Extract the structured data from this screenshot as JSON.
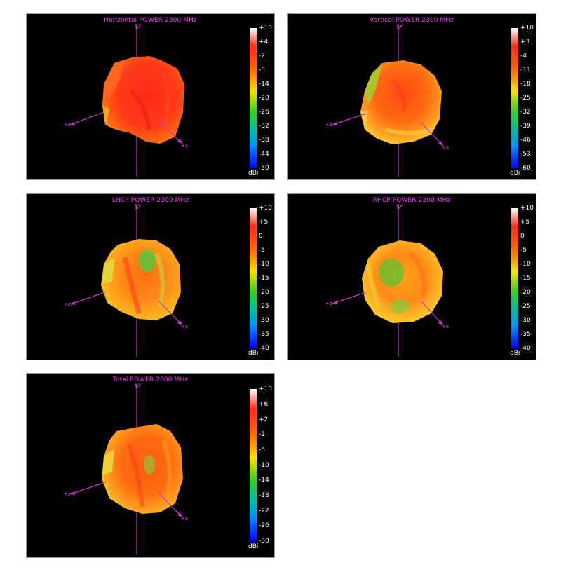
{
  "panels": [
    {
      "title": "Horizontal POWER 2300  MHz",
      "colorbar": {
        "ticks": [
          "+10",
          "+4",
          "-2",
          "-8",
          "-14",
          "-20",
          "-26",
          "-32",
          "-38",
          "-44",
          "-50"
        ],
        "unit": "dBi"
      },
      "axes": {
        "z": "+z",
        "x": "+x",
        "y": "+y"
      }
    },
    {
      "title": "Vertical POWER 2300  MHz",
      "colorbar": {
        "ticks": [
          "+10",
          "+3",
          "-4",
          "-11",
          "-18",
          "-25",
          "-32",
          "-39",
          "-46",
          "-53",
          "-60"
        ],
        "unit": "dBi"
      },
      "axes": {
        "z": "+z",
        "x": "+x",
        "y": "+y"
      }
    },
    {
      "title": "LHCP POWER 2300  MHz",
      "colorbar": {
        "ticks": [
          "+10",
          "+5",
          "0",
          "-5",
          "-10",
          "-15",
          "-20",
          "-25",
          "-30",
          "-35",
          "-40"
        ],
        "unit": "dBi"
      },
      "axes": {
        "z": "+z",
        "x": "+x",
        "y": "+y"
      }
    },
    {
      "title": "RHCP POWER 2300  MHz",
      "colorbar": {
        "ticks": [
          "+10",
          "+5",
          "0",
          "-5",
          "-10",
          "-15",
          "-20",
          "-25",
          "-30",
          "-35",
          "-40"
        ],
        "unit": "dBi"
      },
      "axes": {
        "z": "+z",
        "x": "+x",
        "y": "+y"
      }
    },
    {
      "title": "Total POWER 2300  MHz",
      "colorbar": {
        "ticks": [
          "+10",
          "+6",
          "+2",
          "-2",
          "-6",
          "-10",
          "-14",
          "-18",
          "-22",
          "-26",
          "-30"
        ],
        "unit": "dBi"
      },
      "axes": {
        "z": "+z",
        "x": "+x",
        "y": "+y"
      }
    }
  ],
  "chart_data": [
    {
      "type": "heatmap",
      "title": "Horizontal POWER 2300  MHz",
      "colorbar_range": [
        -50,
        10
      ],
      "colorbar_unit": "dBi",
      "dominant_color": "#ff3a1a"
    },
    {
      "type": "heatmap",
      "title": "Vertical POWER 2300  MHz",
      "colorbar_range": [
        -60,
        10
      ],
      "colorbar_unit": "dBi",
      "dominant_color": "#ff5a10"
    },
    {
      "type": "heatmap",
      "title": "LHCP POWER 2300  MHz",
      "colorbar_range": [
        -40,
        10
      ],
      "colorbar_unit": "dBi",
      "dominant_color": "#ff8a10"
    },
    {
      "type": "heatmap",
      "title": "RHCP POWER 2300  MHz",
      "colorbar_range": [
        -40,
        10
      ],
      "colorbar_unit": "dBi",
      "dominant_color": "#ffc020"
    },
    {
      "type": "heatmap",
      "title": "Total POWER 2300  MHz",
      "colorbar_range": [
        -30,
        10
      ],
      "colorbar_unit": "dBi",
      "dominant_color": "#ff6010"
    }
  ],
  "colors": {
    "title": "#ff2cff",
    "axis": "#cc33cc",
    "background": "#000000"
  }
}
